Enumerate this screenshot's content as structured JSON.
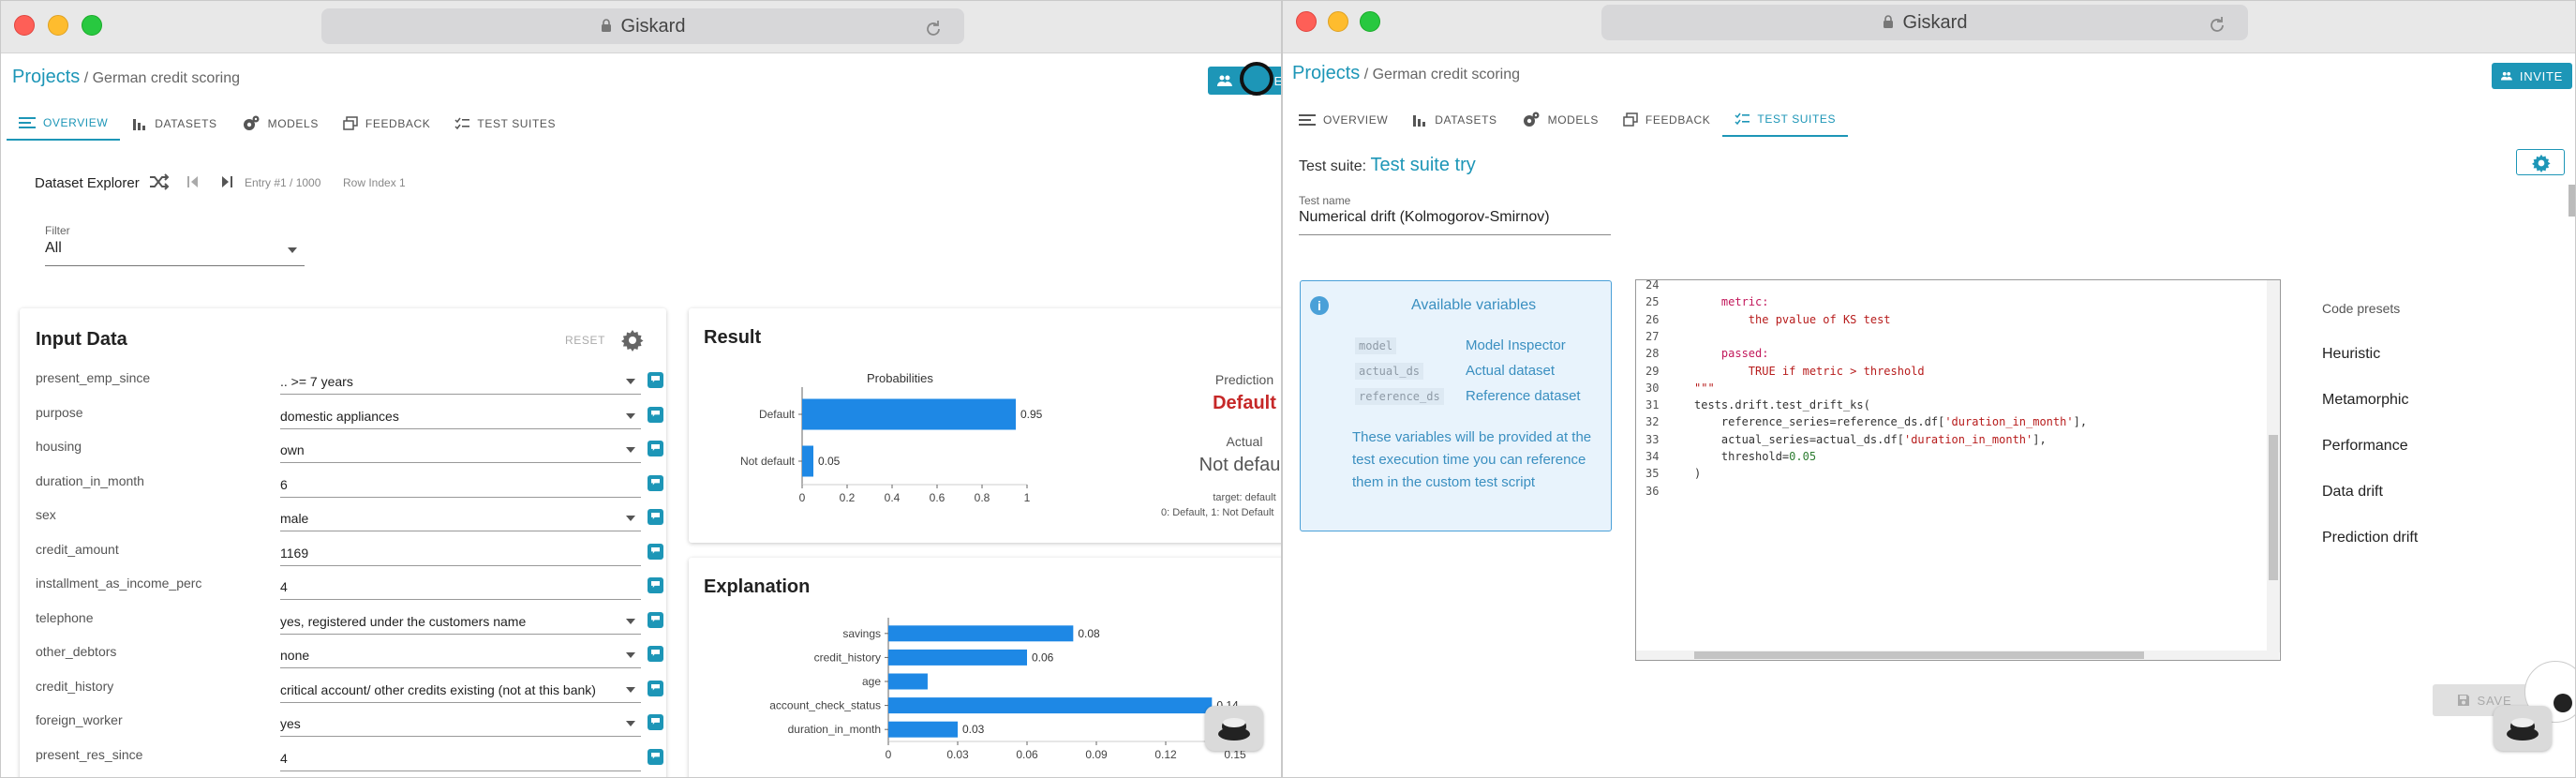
{
  "left": {
    "address": "Giskard",
    "breadcrumb": {
      "root": "Projects",
      "sep": "/",
      "project": "German credit scoring"
    },
    "invite_label": "INVITE",
    "tabs": [
      "OVERVIEW",
      "DATASETS",
      "MODELS",
      "FEEDBACK",
      "TEST SUITES"
    ],
    "explorer": {
      "title": "Dataset Explorer",
      "entry": "Entry #1 / 1000",
      "row_index": "Row Index 1"
    },
    "filter": {
      "label": "Filter",
      "value": "All"
    },
    "input_data": {
      "title": "Input Data",
      "reset": "RESET",
      "rows": [
        {
          "label": "present_emp_since",
          "value": ".. >= 7 years",
          "dropdown": true
        },
        {
          "label": "purpose",
          "value": "domestic appliances",
          "dropdown": true
        },
        {
          "label": "housing",
          "value": "own",
          "dropdown": true
        },
        {
          "label": "duration_in_month",
          "value": "6",
          "dropdown": false
        },
        {
          "label": "sex",
          "value": "male",
          "dropdown": true
        },
        {
          "label": "credit_amount",
          "value": "1169",
          "dropdown": false
        },
        {
          "label": "installment_as_income_perc",
          "value": "4",
          "dropdown": false
        },
        {
          "label": "telephone",
          "value": "yes, registered under the customers name",
          "dropdown": true
        },
        {
          "label": "other_debtors",
          "value": "none",
          "dropdown": true
        },
        {
          "label": "credit_history",
          "value": "critical account/ other credits existing (not at this bank)",
          "dropdown": true
        },
        {
          "label": "foreign_worker",
          "value": "yes",
          "dropdown": true
        },
        {
          "label": "present_res_since",
          "value": "4",
          "dropdown": false
        }
      ]
    },
    "result": {
      "title": "Result",
      "probabilities_title": "Probabilities",
      "prediction_label": "Prediction",
      "prediction_value": "Default",
      "actual_label": "Actual",
      "actual_value": "Not default",
      "target_note": "target: default",
      "target_map": "0: Default, 1: Not Default"
    },
    "explanation": {
      "title": "Explanation"
    }
  },
  "right": {
    "address": "Giskard",
    "breadcrumb": {
      "root": "Projects",
      "sep": "/",
      "project": "German credit scoring"
    },
    "invite_label": "INVITE",
    "tabs": [
      "OVERVIEW",
      "DATASETS",
      "MODELS",
      "FEEDBACK",
      "TEST SUITES"
    ],
    "suite_prefix": "Test suite:",
    "suite_name": "Test suite try",
    "test_name_label": "Test name",
    "test_name_value": "Numerical drift (Kolmogorov-Smirnov)",
    "available": {
      "title": "Available variables",
      "vars": [
        {
          "key": "model",
          "desc": "Model Inspector"
        },
        {
          "key": "actual_ds",
          "desc": "Actual dataset"
        },
        {
          "key": "reference_ds",
          "desc": "Reference dataset"
        }
      ],
      "note": "These variables will be provided at the test execution time you can reference them in the custom test script"
    },
    "code": [
      {
        "n": "24",
        "t": ""
      },
      {
        "n": "25",
        "t": "    metric:"
      },
      {
        "n": "26",
        "t": "        the pvalue of KS test"
      },
      {
        "n": "27",
        "t": ""
      },
      {
        "n": "28",
        "t": "    passed:"
      },
      {
        "n": "29",
        "t": "        TRUE if metric > threshold"
      },
      {
        "n": "30",
        "t": "\"\"\""
      },
      {
        "n": "31",
        "t": "tests.drift.test_drift_ks("
      },
      {
        "n": "32",
        "t": "    reference_series=reference_ds.df['duration_in_month'],"
      },
      {
        "n": "33",
        "t": "    actual_series=actual_ds.df['duration_in_month'],"
      },
      {
        "n": "34",
        "t": "    threshold=0.05"
      },
      {
        "n": "35",
        "t": ")"
      },
      {
        "n": "36",
        "t": ""
      }
    ],
    "presets_title": "Code presets",
    "presets": [
      "Heuristic",
      "Metamorphic",
      "Performance",
      "Data drift",
      "Prediction drift"
    ],
    "save_label": "SAVE"
  },
  "chart_data": [
    {
      "type": "bar",
      "orientation": "horizontal",
      "title": "Probabilities",
      "categories": [
        "Default",
        "Not default"
      ],
      "values": [
        0.95,
        0.05
      ],
      "xlim": [
        0,
        1
      ],
      "xticks": [
        "0",
        "0.2",
        "0.4",
        "0.6",
        "0.8",
        "1"
      ],
      "color": "#1e88e5"
    },
    {
      "type": "bar",
      "orientation": "horizontal",
      "categories": [
        "savings",
        "credit_history",
        "age",
        "account_check_status",
        "duration_in_month"
      ],
      "values": [
        0.08,
        0.06,
        0.017,
        0.14,
        0.03
      ],
      "labels": [
        "0.08",
        "0.06",
        "",
        "0.14",
        "0.03"
      ],
      "xlim": [
        0,
        0.15
      ],
      "xticks": [
        "0",
        "0.03",
        "0.06",
        "0.09",
        "0.12",
        "0.15"
      ],
      "color": "#1e88e5"
    }
  ]
}
